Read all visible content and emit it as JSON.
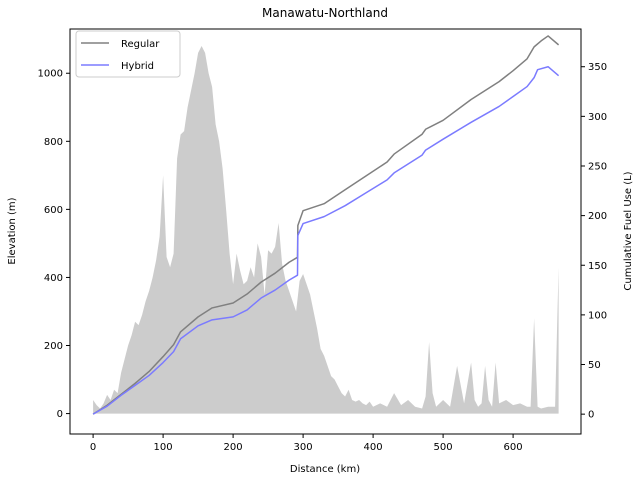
{
  "chart_data": {
    "type": "line",
    "title": "Manawatu-Northland",
    "xlabel": "Distance (km)",
    "ylabel_left": "Elevation (m)",
    "ylabel_right": "Cumulative Fuel Use (L)",
    "xlim": [
      -33,
      697
    ],
    "ylim_left": [
      -60,
      1130
    ],
    "ylim_right": [
      -20,
      388
    ],
    "x_ticks": [
      0,
      100,
      200,
      300,
      400,
      500,
      600
    ],
    "y_ticks_left": [
      0,
      200,
      400,
      600,
      800,
      1000
    ],
    "y_ticks_right": [
      0,
      50,
      100,
      150,
      200,
      250,
      300,
      350
    ],
    "grid": false,
    "legend_position": "top-left",
    "elevation_color": "#cccccc",
    "elevation": {
      "x": [
        0,
        5,
        10,
        15,
        20,
        25,
        30,
        35,
        40,
        45,
        50,
        55,
        60,
        65,
        70,
        75,
        80,
        85,
        90,
        95,
        100,
        105,
        110,
        115,
        120,
        125,
        130,
        135,
        140,
        145,
        150,
        155,
        160,
        165,
        170,
        175,
        180,
        185,
        190,
        195,
        200,
        205,
        210,
        215,
        220,
        225,
        230,
        235,
        240,
        245,
        250,
        255,
        260,
        265,
        270,
        275,
        280,
        285,
        290,
        295,
        300,
        305,
        310,
        315,
        320,
        325,
        330,
        335,
        340,
        345,
        350,
        355,
        360,
        365,
        370,
        375,
        380,
        385,
        390,
        395,
        400,
        410,
        420,
        430,
        440,
        450,
        460,
        470,
        475,
        480,
        485,
        490,
        500,
        510,
        520,
        530,
        540,
        545,
        550,
        555,
        560,
        565,
        570,
        575,
        580,
        590,
        600,
        610,
        620,
        625,
        630,
        635,
        640,
        650,
        660,
        665
      ],
      "y": [
        40,
        25,
        15,
        30,
        55,
        40,
        70,
        60,
        120,
        160,
        200,
        230,
        270,
        260,
        290,
        330,
        360,
        400,
        450,
        520,
        700,
        460,
        430,
        470,
        750,
        820,
        830,
        900,
        950,
        1000,
        1060,
        1080,
        1060,
        1000,
        960,
        850,
        800,
        720,
        600,
        470,
        380,
        470,
        420,
        380,
        390,
        430,
        400,
        500,
        460,
        350,
        480,
        470,
        490,
        560,
        440,
        390,
        360,
        330,
        300,
        390,
        410,
        380,
        350,
        300,
        250,
        190,
        170,
        140,
        110,
        100,
        80,
        60,
        50,
        70,
        40,
        35,
        40,
        30,
        25,
        35,
        20,
        30,
        20,
        60,
        25,
        40,
        20,
        15,
        50,
        210,
        60,
        20,
        40,
        20,
        140,
        30,
        150,
        40,
        20,
        30,
        140,
        40,
        20,
        150,
        30,
        40,
        25,
        30,
        20,
        20,
        280,
        20,
        15,
        20,
        20,
        430
      ]
    },
    "series": [
      {
        "name": "Regular",
        "color": "#808080",
        "x": [
          0,
          20,
          40,
          60,
          80,
          100,
          115,
          125,
          150,
          170,
          200,
          220,
          240,
          260,
          280,
          292,
          292.5,
          300,
          330,
          360,
          390,
          420,
          430,
          470,
          475,
          500,
          540,
          580,
          600,
          620,
          630,
          640,
          650,
          665
        ],
        "y": [
          0,
          9,
          20,
          31,
          43,
          58,
          70,
          83,
          98,
          107,
          112,
          121,
          133,
          142,
          153,
          158,
          190,
          205,
          212,
          226,
          240,
          254,
          262,
          282,
          287,
          296,
          317,
          335,
          346,
          358,
          370,
          376,
          381,
          372
        ]
      },
      {
        "name": "Hybrid",
        "color": "#7b7bff",
        "x": [
          0,
          20,
          40,
          60,
          80,
          100,
          115,
          125,
          150,
          170,
          200,
          220,
          240,
          260,
          280,
          292,
          292.5,
          300,
          330,
          360,
          390,
          420,
          430,
          470,
          475,
          500,
          540,
          580,
          600,
          620,
          630,
          635,
          650,
          665
        ],
        "y": [
          0,
          8,
          19,
          29,
          39,
          52,
          63,
          76,
          89,
          95,
          98,
          105,
          117,
          125,
          135,
          140,
          180,
          192,
          199,
          210,
          223,
          236,
          243,
          261,
          266,
          277,
          294,
          310,
          320,
          330,
          339,
          347,
          350,
          341
        ]
      }
    ]
  }
}
